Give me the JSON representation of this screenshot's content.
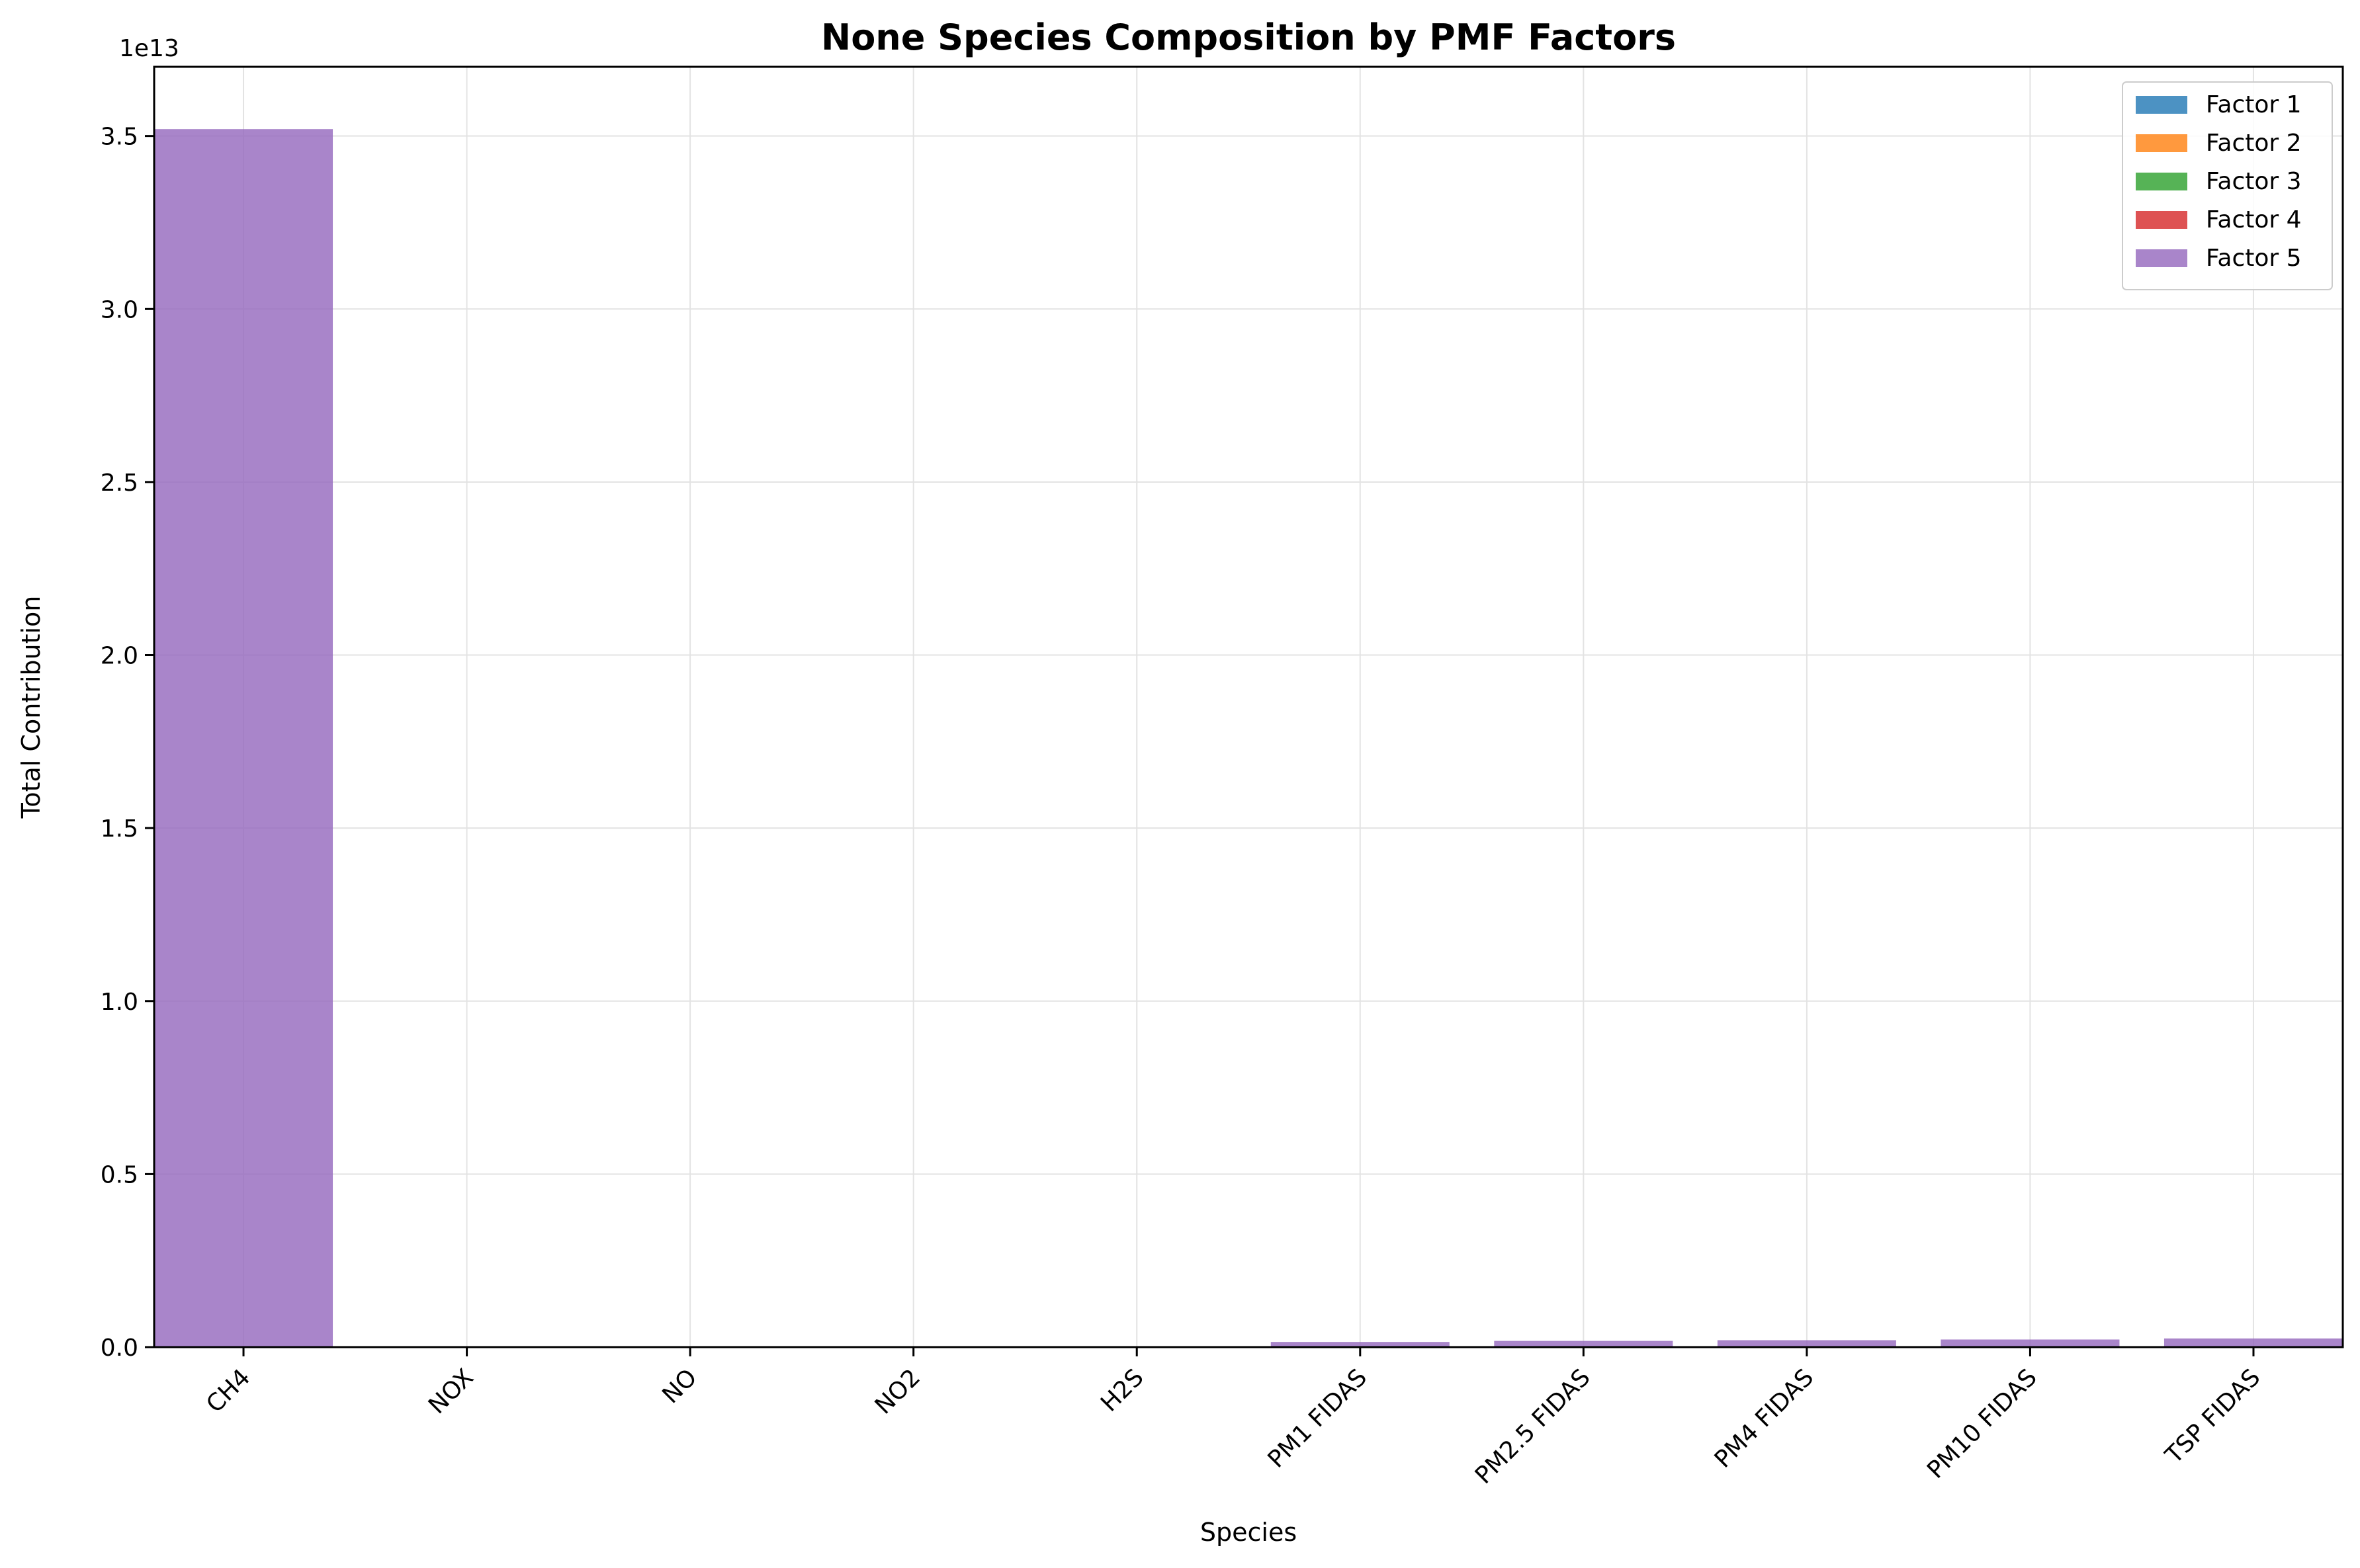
{
  "chart_data": {
    "type": "bar",
    "stacked": true,
    "title": "None Species Composition by PMF Factors",
    "xlabel": "Species",
    "ylabel": "Total Contribution",
    "y_offset_label": "1e13",
    "y_scale_exponent": 13,
    "ylim": [
      0,
      3.7
    ],
    "yticks": [
      0.0,
      0.5,
      1.0,
      1.5,
      2.0,
      2.5,
      3.0,
      3.5
    ],
    "ytick_labels": [
      "0.0",
      "0.5",
      "1.0",
      "1.5",
      "2.0",
      "2.5",
      "3.0",
      "3.5"
    ],
    "grid": true,
    "legend_position": "top-right",
    "categories": [
      "CH4",
      "NOX",
      "NO",
      "NO2",
      "H2S",
      "PM1 FIDAS",
      "PM2.5 FIDAS",
      "PM4 FIDAS",
      "PM10 FIDAS",
      "TSP FIDAS"
    ],
    "series": [
      {
        "name": "Factor 1",
        "color": "#1f77b4",
        "values": [
          0,
          0,
          0,
          0,
          0,
          0,
          0,
          0,
          0,
          0
        ]
      },
      {
        "name": "Factor 2",
        "color": "#ff7f0e",
        "values": [
          0,
          0,
          0,
          0,
          0,
          0,
          0,
          0,
          0,
          0
        ]
      },
      {
        "name": "Factor 3",
        "color": "#2ca02c",
        "values": [
          0,
          0,
          0,
          0,
          0,
          0,
          0,
          0,
          0,
          0
        ]
      },
      {
        "name": "Factor 4",
        "color": "#d62728",
        "values": [
          0,
          0,
          0,
          0,
          0,
          0,
          0,
          0,
          0,
          0
        ]
      },
      {
        "name": "Factor 5",
        "color": "#9467bd",
        "values": [
          3.52,
          0,
          0,
          0,
          0,
          0.015,
          0.018,
          0.02,
          0.022,
          0.025
        ]
      }
    ]
  }
}
